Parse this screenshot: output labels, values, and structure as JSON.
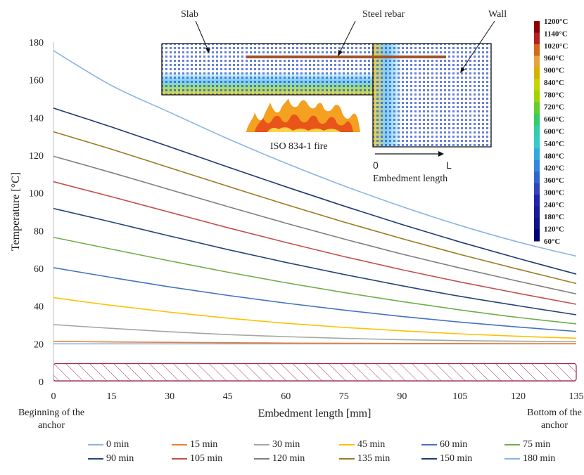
{
  "chart_data": {
    "type": "line",
    "xlabel": "Embedment length [mm]",
    "ylabel": "Temperature [°C]",
    "xlim": [
      0,
      135
    ],
    "ylim": [
      0,
      180
    ],
    "xticks": [
      0,
      15,
      30,
      45,
      60,
      75,
      90,
      105,
      120,
      135
    ],
    "yticks": [
      0,
      20,
      40,
      60,
      80,
      100,
      120,
      140,
      160,
      180
    ],
    "grid": false,
    "legend_position": "bottom",
    "x_start_label": "Beginning of the anchor",
    "x_end_label": "Bottom of the anchor",
    "x": [
      0,
      15,
      30,
      45,
      60,
      75,
      90,
      105,
      120,
      135
    ],
    "series": [
      {
        "name": "0 min",
        "color": "#8db4e2",
        "values": [
          20,
          20,
          20,
          20,
          20,
          20,
          20,
          20,
          20,
          20
        ]
      },
      {
        "name": "15 min",
        "color": "#ed7d31",
        "values": [
          21.3,
          21,
          20.8,
          20.6,
          20.4,
          20.3,
          20.2,
          20.2,
          20.1,
          20.1
        ]
      },
      {
        "name": "30 min",
        "color": "#a5a5a5",
        "values": [
          30.2,
          28.2,
          26.4,
          24.9,
          23.8,
          22.9,
          22.2,
          21.7,
          21.4,
          21.2
        ]
      },
      {
        "name": "45 min",
        "color": "#ffc000",
        "values": [
          44.5,
          40.4,
          36.8,
          33.6,
          30.9,
          28.7,
          26.9,
          25.3,
          24,
          23
        ]
      },
      {
        "name": "60 min",
        "color": "#4472c4",
        "values": [
          60.4,
          55.2,
          50.2,
          45.7,
          41.6,
          37.9,
          34.5,
          31.5,
          28.9,
          26.6
        ]
      },
      {
        "name": "75 min",
        "color": "#70ad47",
        "values": [
          76.5,
          70.2,
          64,
          58,
          52.4,
          47.2,
          42.4,
          38,
          34,
          30.6
        ]
      },
      {
        "name": "90 min",
        "color": "#264478",
        "values": [
          91.8,
          84.6,
          77.2,
          70,
          63.2,
          56.8,
          50.8,
          45.2,
          40.2,
          35.4
        ]
      },
      {
        "name": "105 min",
        "color": "#c0504d",
        "values": [
          106,
          98,
          89.8,
          81.6,
          73.8,
          66.3,
          59.3,
          52.8,
          46.8,
          41
        ]
      },
      {
        "name": "120 min",
        "color": "#7f7f7f",
        "values": [
          119.5,
          110.8,
          101.8,
          92.8,
          84,
          75.6,
          67.6,
          60.2,
          53.2,
          46.5
        ]
      },
      {
        "name": "135 min",
        "color": "#9c7a1f",
        "values": [
          132.5,
          123.2,
          113.4,
          103.6,
          93.9,
          84.6,
          75.8,
          67.4,
          59.6,
          52
        ]
      },
      {
        "name": "150 min",
        "color": "#1f3a6e",
        "values": [
          145,
          135,
          124.5,
          113.8,
          103.3,
          93.1,
          83.3,
          74,
          65.3,
          57
        ]
      },
      {
        "name": "180 min",
        "color": "#8ab4e0",
        "values": [
          175.5,
          157,
          142.8,
          128.8,
          115.8,
          103.8,
          92.8,
          82.8,
          74,
          66.5
        ]
      }
    ],
    "annotations": {
      "slab": "Slab",
      "rebar": "Steel rebar",
      "wall": "Wall",
      "fire": "ISO 834-1 fire",
      "axis_zero": "0",
      "axis_l": "L",
      "embed_caption": "Embedment length"
    },
    "colorbar": {
      "labels": [
        "1200°C",
        "1140°C",
        "1020°C",
        "960°C",
        "900°C",
        "840°C",
        "780°C",
        "720°C",
        "660°C",
        "600°C",
        "540°C",
        "480°C",
        "420°C",
        "360°C",
        "300°C",
        "240°C",
        "180°C",
        "120°C",
        "60°C"
      ],
      "colors": [
        "#8b0000",
        "#b22222",
        "#d2691e",
        "#e8a33d",
        "#d4b200",
        "#c8d400",
        "#9fd400",
        "#66cc33",
        "#33cc66",
        "#33ccaa",
        "#33cccc",
        "#33aadd",
        "#3388dd",
        "#3366cc",
        "#3344bb",
        "#2222aa",
        "#1a1a99",
        "#111188",
        "#000077"
      ]
    },
    "hatch_band": {
      "y_range": [
        0,
        9.5
      ],
      "color": "#a0204a"
    }
  }
}
